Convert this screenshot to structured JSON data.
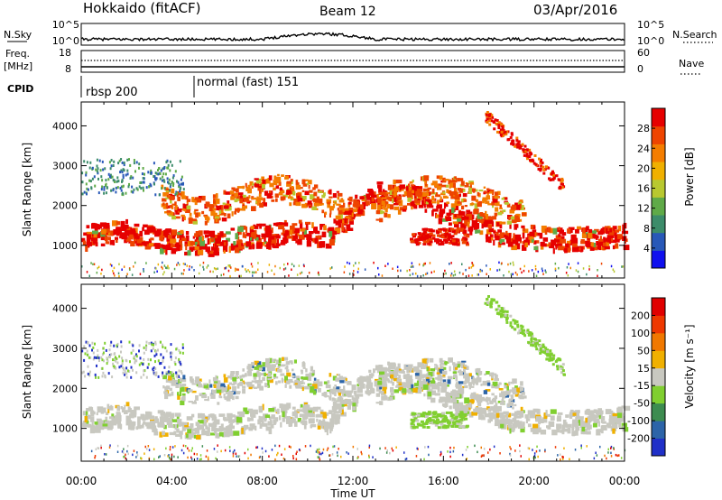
{
  "header": {
    "station": "Hokkaido (fitACF)",
    "beam": "Beam 12",
    "date": "03/Apr/2016"
  },
  "top_panels": {
    "nsky_label": "N.Sky",
    "nsearch_label": "N.Search",
    "freq_label_1": "Freq.",
    "freq_label_2": "[MHz]",
    "nave_label": "Nave",
    "cpid_label": "CPID",
    "nsky_ticks": [
      "10^5",
      "10^0"
    ],
    "nsearch_ticks": [
      "10^5",
      "10^0"
    ],
    "freq_ticks": [
      "18",
      "8"
    ],
    "nave_ticks": [
      "60",
      "0"
    ],
    "cpid_segments": [
      {
        "label": "rbsp 200",
        "start_hour": 0
      },
      {
        "label": "normal (fast) 151",
        "start_hour": 5
      }
    ]
  },
  "chart_data": [
    {
      "type": "heatmap",
      "name": "power",
      "xlabel": "Time UT",
      "ylabel": "Slant Range [km]",
      "x_range_hours": [
        0,
        24
      ],
      "ylim": [
        180,
        4600
      ],
      "y_ticks": [
        1000,
        2000,
        3000,
        4000
      ],
      "colorbar": {
        "label": "Power [dB]",
        "range": [
          0,
          32
        ],
        "ticks": [
          4,
          8,
          12,
          16,
          20,
          24,
          28
        ],
        "colors": [
          "#1010ee",
          "#2858b8",
          "#3c8c6a",
          "#5faa48",
          "#b8c830",
          "#f0b000",
          "#f47d00",
          "#ee4400",
          "#e60000"
        ]
      }
    },
    {
      "type": "heatmap",
      "name": "velocity",
      "xlabel": "Time UT",
      "ylabel": "Slant Range [km]",
      "x_range_hours": [
        0,
        24
      ],
      "ylim": [
        180,
        4600
      ],
      "y_ticks": [
        1000,
        2000,
        3000,
        4000
      ],
      "colorbar": {
        "label": "Velocity [m s⁻¹]",
        "ticks": [
          "200",
          "100",
          "50",
          "15",
          "-15",
          "-50",
          "-100",
          "-200"
        ],
        "colors": [
          "#2030c8",
          "#2c64a8",
          "#3d8c50",
          "#80cf30",
          "#c8c8c0",
          "#f0b000",
          "#f07800",
          "#ee3800",
          "#e00000"
        ]
      }
    }
  ],
  "x_axis": {
    "tick_labels": [
      "00:00",
      "04:00",
      "08:00",
      "12:00",
      "16:00",
      "20:00",
      "00:00"
    ],
    "label": "Time UT"
  }
}
